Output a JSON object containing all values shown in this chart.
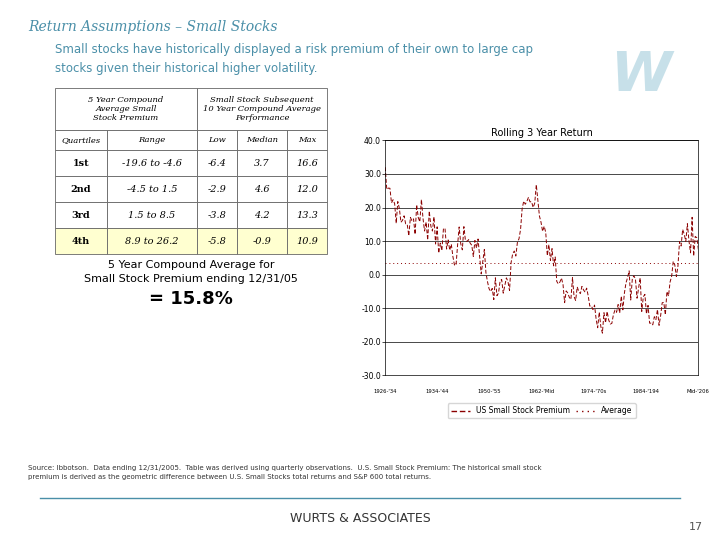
{
  "title": "Return Assumptions – Small Stocks",
  "title_color": "#4a8fa8",
  "bg_color": "#ffffff",
  "subtitle": "Small stocks have historically displayed a risk premium of their own to large cap\nstocks given their historical higher volatility.",
  "subtitle_color": "#4a8fa8",
  "table_data": [
    [
      "1st",
      "-19.6 to -4.6",
      "-6.4",
      "3.7",
      "16.6"
    ],
    [
      "2nd",
      "-4.5 to 1.5",
      "-2.9",
      "4.6",
      "12.0"
    ],
    [
      "3rd",
      "1.5 to 8.5",
      "-3.8",
      "4.2",
      "13.3"
    ],
    [
      "4th",
      "8.9 to 26.2",
      "-5.8",
      "-0.9",
      "10.9"
    ]
  ],
  "highlight_row": 3,
  "highlight_color": "#ffffd0",
  "caption_line1": "5 Year Compound Average for",
  "caption_line2": "Small Stock Premium ending 12/31/05",
  "caption_line3": "= 15.8%",
  "source_text": "Source: Ibbotson.  Data ending 12/31/2005.  Table was derived using quarterly observations.  U.S. Small Stock Premium: The historical small stock\npremium is derived as the geometric difference between U.S. Small Stocks total returns and S&P 600 total returns.",
  "footer_text": "WURTS & ASSOCIATES",
  "page_number": "17",
  "chart_title": "Rolling 3 Year Return",
  "chart_legend_solid": "US Small Stock Premium",
  "chart_legend_dashed": "Average",
  "footer_line_color": "#4a8fa8",
  "teal_color": "#4a8fa8",
  "dark_red": "#8B0000",
  "logo_bg": "#daeef3",
  "logo_w_color": "#b0d4e0"
}
